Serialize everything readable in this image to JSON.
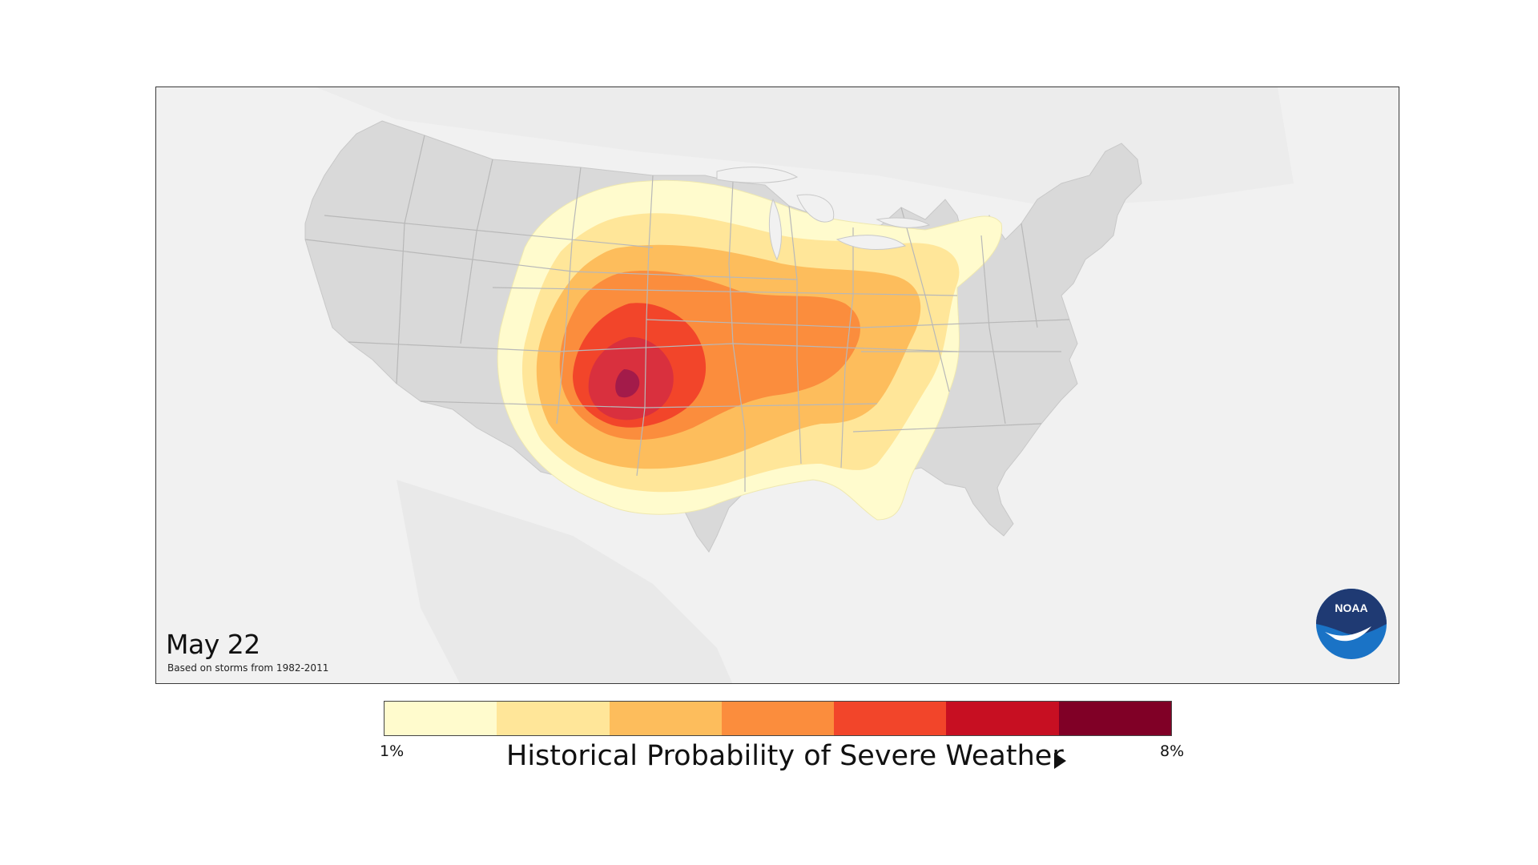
{
  "map": {
    "date": "May 22",
    "source_note": "Based on storms from 1982-2011",
    "logo_text": "NOAA"
  },
  "legend": {
    "title": "Historical Probability of Severe Weather",
    "min_label": "1%",
    "max_label": "8%",
    "colors": [
      "#fffbcd",
      "#ffe699",
      "#fdbd5c",
      "#fb8d3d",
      "#f2452a",
      "#c70f22",
      "#800026"
    ],
    "arrow_icon": "triangle-right-icon"
  },
  "colors": {
    "land": "#d9d9d9",
    "background": "#f1f1f1",
    "state_borders": "#b8b8b8",
    "noaa_blue": "#1a5fb4",
    "noaa_navy": "#1f3a73"
  }
}
